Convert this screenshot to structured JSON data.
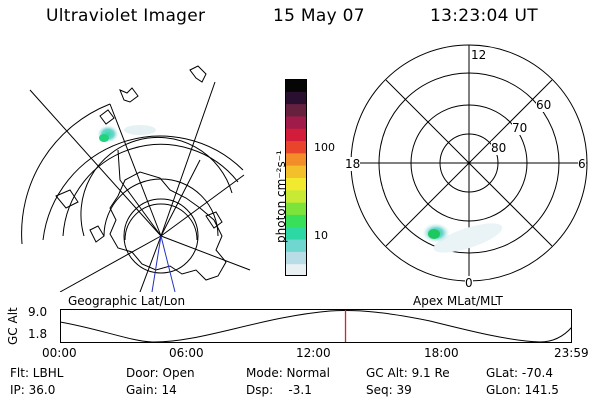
{
  "header": {
    "title": "Ultraviolet Imager",
    "date": "15 May 07",
    "time": "13:23:04 UT"
  },
  "colorbar": {
    "label": "photon cm⁻²s⁻¹",
    "ticks": [
      "100",
      "10"
    ],
    "scale": "log",
    "colors": [
      "#e8f0f4",
      "#b8dde6",
      "#6fd6d0",
      "#2ed8a4",
      "#38df59",
      "#7ce33a",
      "#c8ea35",
      "#f1ea2f",
      "#f3c02c",
      "#f38d29",
      "#e8452c",
      "#d31c3a",
      "#a01a4a",
      "#66213f",
      "#2a1030",
      "#050505"
    ]
  },
  "left_map": {
    "label": "Geographic Lat/Lon"
  },
  "right_map": {
    "label": "Apex MLat/MLT",
    "mlt_labels": {
      "top": "12",
      "left": "18",
      "right": "6",
      "bottom": "0"
    },
    "lat_labels": [
      "60",
      "70",
      "80"
    ]
  },
  "altitude_plot": {
    "ylabel": "GC Alt",
    "yticks": [
      "9.0",
      "1.8"
    ],
    "xticks": [
      "00:00",
      "06:00",
      "12:00",
      "18:00",
      "23:59"
    ],
    "current_time_marker": "13:23",
    "marker_color": "#e02020"
  },
  "status": {
    "flt": "Flt: LBHL",
    "ip": "IP: 36.0",
    "door": "Door: Open",
    "gain": "Gain: 14",
    "mode": "Mode: Normal",
    "dsp": "Dsp:    -3.1",
    "gc_alt": "GC Alt: 9.1 Re",
    "seq": "Seq: 39",
    "glat": "GLat: -70.4",
    "glon": "GLon: 141.5"
  }
}
